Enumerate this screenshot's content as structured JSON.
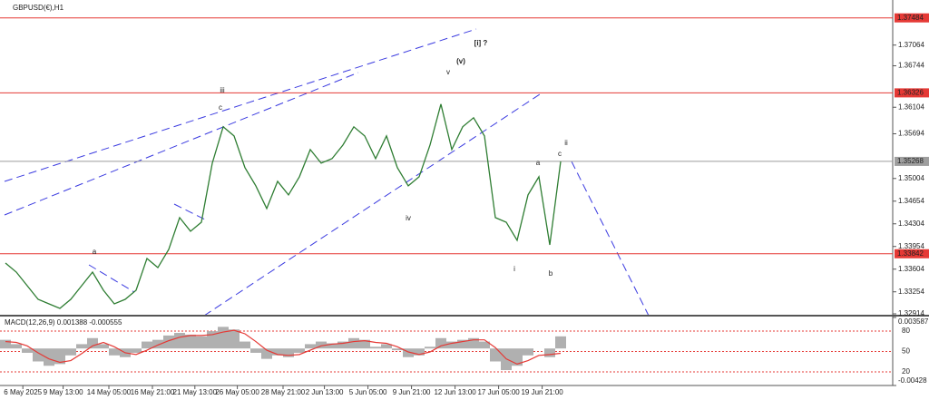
{
  "chart_data": [
    {
      "type": "line",
      "title": "GBPUSD(€),H1",
      "x": [
        0,
        1,
        2,
        3,
        4,
        5,
        6,
        7,
        8,
        9,
        10,
        11,
        12,
        13,
        14,
        15,
        16,
        17,
        18,
        19,
        20,
        21,
        22,
        23,
        24,
        25,
        26,
        27,
        28,
        29,
        30,
        31,
        32,
        33,
        34,
        35,
        36,
        37,
        38,
        39,
        40,
        41,
        42,
        43,
        44,
        45,
        46,
        47,
        48,
        49,
        50,
        51
      ],
      "series": [
        {
          "color": "#2e7d32",
          "values": [
            1.33699,
            1.33558,
            1.33348,
            1.33138,
            1.33068,
            1.32998,
            1.33138,
            1.33348,
            1.33558,
            1.33278,
            1.33068,
            1.33138,
            1.33278,
            1.33769,
            1.33628,
            1.33909,
            1.344,
            1.34189,
            1.34329,
            1.35241,
            1.35802,
            1.35661,
            1.35171,
            1.3489,
            1.3454,
            1.3496,
            1.3475,
            1.3503,
            1.35451,
            1.35241,
            1.35311,
            1.35521,
            1.35802,
            1.35661,
            1.35311,
            1.35661,
            1.35171,
            1.3489,
            1.3503,
            1.35521,
            1.36152,
            1.35451,
            1.35802,
            1.35942,
            1.35661,
            1.344,
            1.34329,
            1.34049,
            1.3475,
            1.3503,
            1.33979,
            1.35268
          ]
        }
      ],
      "xlim": [
        -0.5,
        81.5
      ],
      "xticks": [
        {
          "value": 1.6,
          "label": "6 May 2025"
        },
        {
          "value": 5.3,
          "label": "9 May 13:00"
        },
        {
          "value": 9.5,
          "label": "14 May 05:00"
        },
        {
          "value": 13.5,
          "label": "16 May 21:00"
        },
        {
          "value": 17.4,
          "label": "21 May 13:00"
        },
        {
          "value": 21.3,
          "label": "26 May 05:00"
        },
        {
          "value": 25.5,
          "label": "28 May 21:00"
        },
        {
          "value": 29.3,
          "label": "2 Jun 13:00"
        },
        {
          "value": 33.3,
          "label": "5 Jun 05:00"
        },
        {
          "value": 37.3,
          "label": "9 Jun 21:00"
        },
        {
          "value": 41.3,
          "label": "12 Jun 13:00"
        },
        {
          "value": 45.3,
          "label": "17 Jun 05:00"
        },
        {
          "value": 49.3,
          "label": "19 Jun 21:00"
        }
      ],
      "ylim": [
        1.32914,
        1.3769
      ],
      "yticks": [
        1.37064,
        1.36744,
        1.36104,
        1.35694,
        1.35004,
        1.34654,
        1.34304,
        1.33954,
        1.33604,
        1.33254,
        1.32914
      ],
      "levels": [
        {
          "value": 1.37484,
          "color": "#e53935"
        },
        {
          "value": 1.36326,
          "color": "#e53935"
        },
        {
          "value": 1.33842,
          "color": "#e53935"
        },
        {
          "value": 1.35268,
          "color": "#9e9e9e"
        }
      ],
      "annotations": [
        {
          "text": "a",
          "color": "#111111"
        },
        {
          "text": "iii",
          "color": "#e91ee0"
        },
        {
          "text": "c",
          "color": "#111111"
        },
        {
          "text": "v",
          "color": "#e91ee0"
        },
        {
          "text": "(v)",
          "color": "#3f3fd0"
        },
        {
          "text": "[i] ?",
          "color": "#3a8f1e"
        },
        {
          "text": "iv",
          "color": "#e91ee0"
        },
        {
          "text": "i",
          "color": "#e91ee0"
        },
        {
          "text": "b",
          "color": "#111111"
        },
        {
          "text": "a",
          "color": "#111111"
        },
        {
          "text": "c",
          "color": "#111111"
        },
        {
          "text": "ii",
          "color": "#e91ee0"
        }
      ]
    },
    {
      "type": "macd",
      "title": "MACD(12,26,9) 0.001388 -0.000555",
      "series": [
        {
          "color": "#b0b0b0",
          "values": [
            0.001,
            0.0005,
            -0.0005,
            -0.0015,
            -0.002,
            -0.0018,
            -0.0008,
            0.0005,
            0.0012,
            0.0005,
            -0.0008,
            -0.001,
            -0.0005,
            0.0008,
            0.001,
            0.0015,
            0.0018,
            0.0016,
            0.0014,
            0.002,
            0.0025,
            0.0022,
            0.0008,
            -0.0005,
            -0.0012,
            -0.0008,
            -0.001,
            -0.0005,
            0.0005,
            0.0008,
            0.0006,
            0.0008,
            0.0012,
            0.001,
            0.0002,
            0.0005,
            -0.0002,
            -0.001,
            -0.0008,
            0.0002,
            0.0012,
            0.0008,
            0.001,
            0.0012,
            0.0008,
            -0.0015,
            -0.0025,
            -0.002,
            -0.0008,
            0,
            -0.001,
            0.0014
          ]
        },
        {
          "color": "#e53935",
          "values": [
            0.0008,
            0.0007,
            0.0003,
            -0.0005,
            -0.0012,
            -0.0016,
            -0.0014,
            -0.0006,
            0.0003,
            0.0007,
            0.0002,
            -0.0005,
            -0.0007,
            -0.0002,
            0.0004,
            0.0009,
            0.0013,
            0.0015,
            0.0015,
            0.0016,
            0.0019,
            0.0021,
            0.0017,
            0.0008,
            -0.0002,
            -0.0007,
            -0.0008,
            -0.0007,
            -0.0002,
            0.0003,
            0.0005,
            0.0006,
            0.0008,
            0.0009,
            0.0007,
            0.0006,
            0.0002,
            -0.0004,
            -0.0007,
            -0.0004,
            0.0003,
            0.0006,
            0.0008,
            0.001,
            0.001,
            0.0001,
            -0.0012,
            -0.0018,
            -0.0014,
            -0.0008,
            -0.0007,
            -0.000555
          ]
        }
      ],
      "ylim": [
        -0.00428,
        0.003587
      ],
      "yticks": [
        0.003587,
        -0.00428
      ],
      "y2lim": [
        0,
        100
      ],
      "y2ticks": [
        80,
        50,
        20
      ]
    }
  ]
}
